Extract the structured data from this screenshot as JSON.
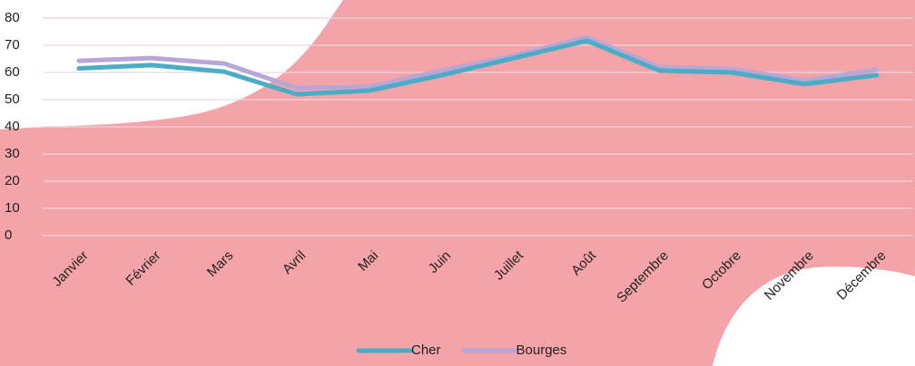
{
  "chart_data": {
    "type": "line",
    "categories": [
      "Janvier",
      "Février",
      "Mars",
      "Avril",
      "Mai",
      "Juin",
      "Juillet",
      "Août",
      "Septembre",
      "Octobre",
      "Novembre",
      "Décembre"
    ],
    "series": [
      {
        "name": "Cher",
        "color": "#4bacc6",
        "values": [
          61.5,
          62.7,
          60.3,
          52,
          53.3,
          59,
          65.3,
          71.7,
          60.7,
          60,
          55.7,
          59
        ]
      },
      {
        "name": "Bourges",
        "color": "#b7a6d6",
        "values": [
          64.3,
          65.3,
          63.3,
          54.3,
          54.7,
          60.7,
          66.3,
          73,
          62,
          61.3,
          57,
          61
        ]
      }
    ],
    "ylim": [
      0,
      80
    ],
    "yticks": [
      0,
      10,
      20,
      30,
      40,
      50,
      60,
      70,
      80
    ],
    "grid": true
  }
}
